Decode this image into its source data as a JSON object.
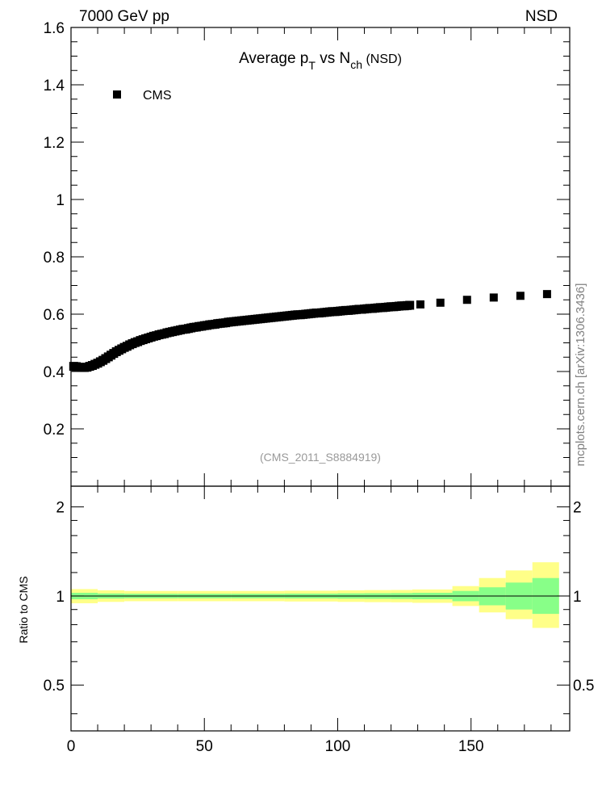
{
  "header": {
    "left": "7000 GeV pp",
    "right": "NSD"
  },
  "side_label": "mcplots.cern.ch [arXiv:1306.3436]",
  "chart_data": [
    {
      "type": "scatter",
      "title": {
        "prefix": "Average p",
        "p_sub": "T",
        "middle": " vs N",
        "n_sub": "ch",
        "suffix": " (NSD)"
      },
      "legend": [
        {
          "name": "CMS",
          "marker": "square",
          "position": "top-left"
        }
      ],
      "watermark": "(CMS_2011_S8884919)",
      "xlim": [
        0,
        187
      ],
      "ylim": [
        0,
        1.6
      ],
      "y_ticks": [
        "0.2",
        "0.4",
        "0.6",
        "0.8",
        "1",
        "1.2",
        "1.4",
        "1.6"
      ],
      "series": [
        {
          "name": "CMS",
          "x": [
            1,
            2,
            3,
            4,
            5,
            6,
            7,
            8,
            9,
            10,
            11,
            12,
            13,
            14,
            15,
            16,
            17,
            18,
            19,
            20,
            21,
            22,
            23,
            24,
            25,
            26,
            27,
            28,
            29,
            30,
            31,
            32,
            33,
            34,
            35,
            36,
            37,
            38,
            39,
            40,
            41,
            42,
            43,
            44,
            45,
            46,
            47,
            48,
            49,
            50,
            51,
            52,
            53,
            54,
            55,
            56,
            57,
            58,
            59,
            60,
            61,
            62,
            63,
            64,
            65,
            66,
            67,
            68,
            69,
            70,
            71,
            72,
            73,
            74,
            75,
            76,
            77,
            78,
            79,
            80,
            81,
            82,
            83,
            84,
            85,
            86,
            87,
            88,
            89,
            90,
            91,
            92,
            93,
            94,
            95,
            96,
            97,
            98,
            99,
            100,
            101,
            102,
            103,
            104,
            105,
            106,
            107,
            108,
            109,
            110,
            111,
            112,
            113,
            114,
            115,
            116,
            117,
            118,
            119,
            120,
            121,
            122,
            123,
            124,
            125,
            126,
            127,
            131,
            138.5,
            148.5,
            158.5,
            168.5,
            178.5
          ],
          "y": [
            0.418,
            0.417,
            0.415,
            0.414,
            0.414,
            0.415,
            0.418,
            0.421,
            0.425,
            0.429,
            0.434,
            0.439,
            0.445,
            0.451,
            0.457,
            0.463,
            0.469,
            0.474,
            0.479,
            0.484,
            0.488,
            0.493,
            0.497,
            0.501,
            0.504,
            0.508,
            0.511,
            0.514,
            0.517,
            0.52,
            0.523,
            0.525,
            0.528,
            0.53,
            0.532,
            0.535,
            0.537,
            0.539,
            0.541,
            0.543,
            0.545,
            0.547,
            0.548,
            0.55,
            0.552,
            0.554,
            0.555,
            0.557,
            0.558,
            0.56,
            0.561,
            0.563,
            0.564,
            0.565,
            0.567,
            0.568,
            0.569,
            0.57,
            0.572,
            0.573,
            0.574,
            0.575,
            0.576,
            0.577,
            0.578,
            0.579,
            0.58,
            0.581,
            0.582,
            0.583,
            0.584,
            0.585,
            0.586,
            0.587,
            0.588,
            0.589,
            0.59,
            0.591,
            0.592,
            0.593,
            0.594,
            0.595,
            0.596,
            0.597,
            0.598,
            0.598,
            0.599,
            0.6,
            0.601,
            0.602,
            0.603,
            0.604,
            0.604,
            0.605,
            0.606,
            0.607,
            0.608,
            0.609,
            0.609,
            0.61,
            0.611,
            0.612,
            0.613,
            0.613,
            0.614,
            0.615,
            0.616,
            0.617,
            0.617,
            0.618,
            0.619,
            0.62,
            0.62,
            0.621,
            0.622,
            0.623,
            0.623,
            0.624,
            0.625,
            0.626,
            0.626,
            0.627,
            0.628,
            0.629,
            0.629,
            0.63,
            0.631,
            0.634,
            0.64,
            0.65,
            0.658,
            0.664,
            0.67
          ]
        }
      ]
    },
    {
      "type": "area",
      "ylabel": "Ratio to CMS",
      "xlim": [
        0,
        187
      ],
      "ylim": [
        0.35,
        2.35
      ],
      "y_scale": "log",
      "x_ticks": [
        "0",
        "50",
        "100",
        "150"
      ],
      "y_ticks": [
        "0.5",
        "1",
        "2"
      ],
      "reference_line": 1,
      "bands": {
        "x_edges": [
          0,
          10,
          20,
          40,
          60,
          80,
          100,
          110,
          120,
          128,
          143,
          153,
          163,
          173,
          183
        ],
        "yellow_lo": [
          0.945,
          0.955,
          0.96,
          0.96,
          0.96,
          0.958,
          0.955,
          0.953,
          0.952,
          0.948,
          0.925,
          0.88,
          0.835,
          0.78
        ],
        "yellow_hi": [
          1.055,
          1.045,
          1.04,
          1.04,
          1.04,
          1.042,
          1.045,
          1.047,
          1.048,
          1.052,
          1.08,
          1.15,
          1.22,
          1.3
        ],
        "green_lo": [
          0.975,
          0.98,
          0.982,
          0.982,
          0.982,
          0.981,
          0.979,
          0.978,
          0.977,
          0.975,
          0.96,
          0.93,
          0.9,
          0.87
        ],
        "green_hi": [
          1.025,
          1.02,
          1.018,
          1.018,
          1.018,
          1.019,
          1.021,
          1.022,
          1.023,
          1.025,
          1.04,
          1.07,
          1.11,
          1.15
        ]
      }
    }
  ]
}
